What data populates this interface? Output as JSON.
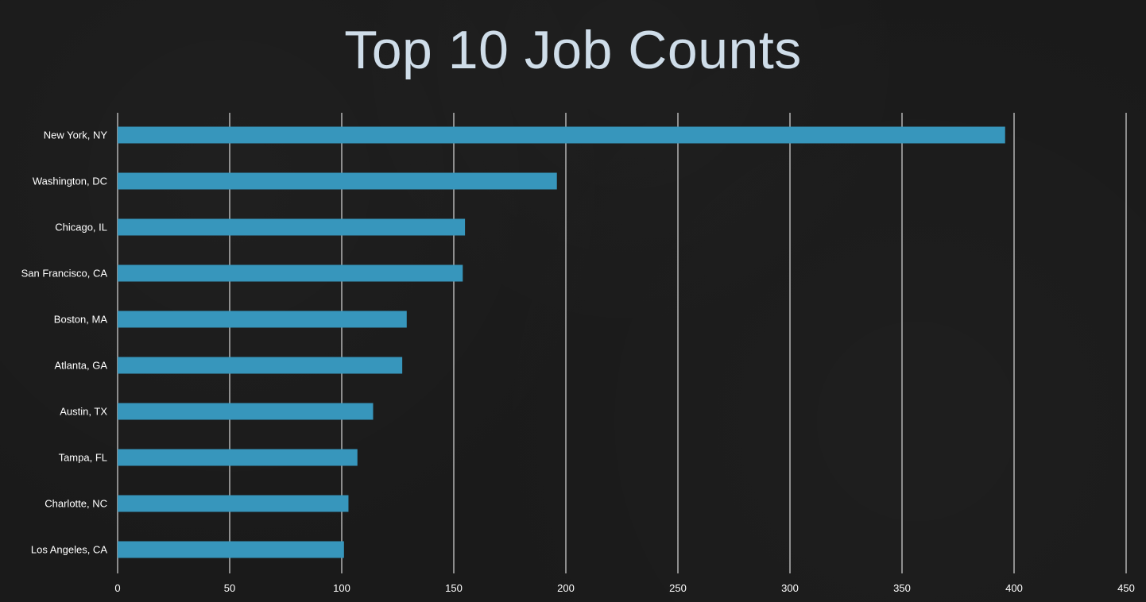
{
  "colors": {
    "background": "#1a1a1a",
    "bar": "#3796bc",
    "grid": "#ffffff",
    "title": "#cfdde9",
    "text": "#ffffff"
  },
  "chart_data": {
    "type": "bar",
    "orientation": "horizontal",
    "title": "Top 10 Job Counts",
    "xlabel": "",
    "ylabel": "",
    "categories": [
      "New York, NY",
      "Washington, DC",
      "Chicago, IL",
      "San Francisco, CA",
      "Boston, MA",
      "Atlanta, GA",
      "Austin, TX",
      "Tampa, FL",
      "Charlotte, NC",
      "Los Angeles, CA"
    ],
    "values": [
      396,
      196,
      155,
      154,
      129,
      127,
      114,
      107,
      103,
      101
    ],
    "xlim": [
      0,
      450
    ],
    "xticks": [
      0,
      50,
      100,
      150,
      200,
      250,
      300,
      350,
      400,
      450
    ],
    "grid": "vertical",
    "legend": "none"
  }
}
